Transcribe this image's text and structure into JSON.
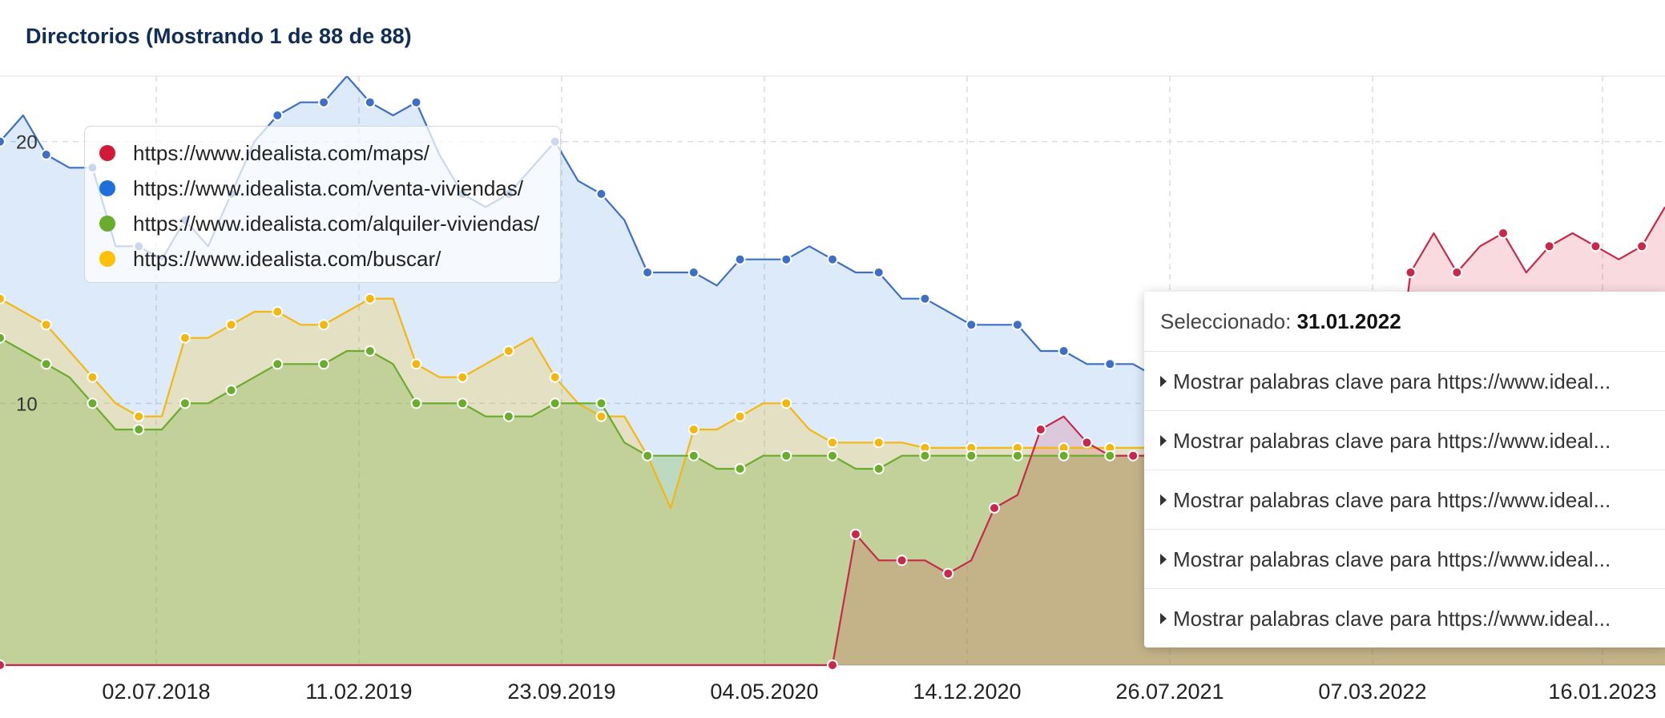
{
  "header": {
    "title": "Directorios (Mostrando 1 de 88 de 88)"
  },
  "legend": [
    {
      "label": "https://www.idealista.com/maps/",
      "color": "#d1193a"
    },
    {
      "label": "https://www.idealista.com/venta-viviendas/",
      "color": "#1e6fd9"
    },
    {
      "label": "https://www.idealista.com/alquiler-viviendas/",
      "color": "#6aac2c"
    },
    {
      "label": "https://www.idealista.com/buscar/",
      "color": "#ffc107"
    }
  ],
  "tooltip": {
    "selected_label": "Seleccionado:",
    "selected_date": "31.01.2022",
    "rows": [
      "Mostrar palabras clave para https://www.ideal...",
      "Mostrar palabras clave para https://www.ideal...",
      "Mostrar palabras clave para https://www.ideal...",
      "Mostrar palabras clave para https://www.ideal...",
      "Mostrar palabras clave para https://www.ideal..."
    ]
  },
  "chart_data": {
    "type": "area",
    "x_ticks": [
      "02.07.2018",
      "11.02.2019",
      "23.09.2019",
      "04.05.2020",
      "14.12.2020",
      "26.07.2021",
      "07.03.2022",
      "16.01.2023"
    ],
    "y_ticks": [
      10,
      20
    ],
    "ylim": [
      0,
      22.5
    ],
    "grid": true,
    "legend_position": "top-left",
    "series": [
      {
        "name": "https://www.idealista.com/maps/",
        "color": "#d1193a",
        "points": [
          [
            0,
            0
          ],
          [
            36,
            0
          ],
          [
            37,
            5
          ],
          [
            38,
            4
          ],
          [
            39,
            4
          ],
          [
            40,
            4
          ],
          [
            41,
            3.5
          ],
          [
            42,
            4
          ],
          [
            43,
            6
          ],
          [
            44,
            6.5
          ],
          [
            45,
            9
          ],
          [
            46,
            9.5
          ],
          [
            47,
            8.5
          ],
          [
            48,
            8
          ],
          [
            49,
            8
          ],
          [
            50,
            8
          ],
          [
            51,
            8
          ],
          [
            52,
            8.5
          ],
          [
            53,
            8.5
          ],
          [
            54,
            8
          ],
          [
            55,
            8.3
          ],
          [
            56,
            8.5
          ],
          [
            57,
            8.3
          ],
          [
            58,
            8
          ],
          [
            59,
            8
          ],
          [
            60,
            8
          ],
          [
            61,
            15
          ],
          [
            62,
            16.5
          ],
          [
            63,
            15
          ],
          [
            64,
            16
          ],
          [
            65,
            16.5
          ],
          [
            66,
            15
          ],
          [
            67,
            16
          ],
          [
            68,
            16.5
          ],
          [
            69,
            16
          ],
          [
            70,
            15.5
          ],
          [
            71,
            16
          ],
          [
            72,
            17.5
          ]
        ]
      },
      {
        "name": "https://www.idealista.com/venta-viviendas/",
        "color": "#1e6fd9",
        "points": [
          [
            0,
            20
          ],
          [
            1,
            21
          ],
          [
            2,
            19.5
          ],
          [
            3,
            19
          ],
          [
            4,
            19
          ],
          [
            5,
            16
          ],
          [
            6,
            16
          ],
          [
            7,
            15.5
          ],
          [
            8,
            17
          ],
          [
            9,
            16
          ],
          [
            10,
            18
          ],
          [
            11,
            20
          ],
          [
            12,
            21
          ],
          [
            13,
            21.5
          ],
          [
            14,
            21.5
          ],
          [
            15,
            22.5
          ],
          [
            16,
            21.5
          ],
          [
            17,
            21
          ],
          [
            18,
            21.5
          ],
          [
            19,
            19.5
          ],
          [
            20,
            18
          ],
          [
            21,
            17.5
          ],
          [
            22,
            18
          ],
          [
            23,
            19
          ],
          [
            24,
            20
          ],
          [
            25,
            18.5
          ],
          [
            26,
            18
          ],
          [
            27,
            17
          ],
          [
            28,
            15
          ],
          [
            29,
            15
          ],
          [
            30,
            15
          ],
          [
            31,
            14.5
          ],
          [
            32,
            15.5
          ],
          [
            33,
            15.5
          ],
          [
            34,
            15.5
          ],
          [
            35,
            16
          ],
          [
            36,
            15.5
          ],
          [
            37,
            15
          ],
          [
            38,
            15
          ],
          [
            39,
            14
          ],
          [
            40,
            14
          ],
          [
            41,
            13.5
          ],
          [
            42,
            13
          ],
          [
            43,
            13
          ],
          [
            44,
            13
          ],
          [
            45,
            12
          ],
          [
            46,
            12
          ],
          [
            47,
            11.5
          ],
          [
            48,
            11.5
          ],
          [
            49,
            11.5
          ],
          [
            50,
            11
          ],
          [
            51,
            11
          ],
          [
            52,
            10.5
          ],
          [
            53,
            10.5
          ],
          [
            54,
            10.5
          ],
          [
            55,
            10.3
          ],
          [
            56,
            10.5
          ],
          [
            57,
            10.8
          ],
          [
            58,
            11
          ],
          [
            59,
            11
          ],
          [
            60,
            11
          ],
          [
            61,
            11.2
          ],
          [
            62,
            11.3
          ],
          [
            63,
            11.3
          ],
          [
            64,
            11.3
          ],
          [
            65,
            11.3
          ],
          [
            66,
            11.3
          ],
          [
            67,
            11.3
          ],
          [
            68,
            11.3
          ],
          [
            69,
            11.3
          ],
          [
            70,
            11.3
          ],
          [
            71,
            11.3
          ],
          [
            72,
            11.3
          ]
        ]
      },
      {
        "name": "https://www.idealista.com/alquiler-viviendas/",
        "color": "#6aac2c",
        "points": [
          [
            0,
            12.5
          ],
          [
            1,
            12
          ],
          [
            2,
            11.5
          ],
          [
            3,
            11
          ],
          [
            4,
            10
          ],
          [
            5,
            9
          ],
          [
            6,
            9
          ],
          [
            7,
            9
          ],
          [
            8,
            10
          ],
          [
            9,
            10
          ],
          [
            10,
            10.5
          ],
          [
            11,
            11
          ],
          [
            12,
            11.5
          ],
          [
            13,
            11.5
          ],
          [
            14,
            11.5
          ],
          [
            15,
            12
          ],
          [
            16,
            12
          ],
          [
            17,
            11.5
          ],
          [
            18,
            10
          ],
          [
            19,
            10
          ],
          [
            20,
            10
          ],
          [
            21,
            9.5
          ],
          [
            22,
            9.5
          ],
          [
            23,
            9.5
          ],
          [
            24,
            10
          ],
          [
            25,
            10
          ],
          [
            26,
            10
          ],
          [
            27,
            8.5
          ],
          [
            28,
            8
          ],
          [
            29,
            8
          ],
          [
            30,
            8
          ],
          [
            31,
            7.5
          ],
          [
            32,
            7.5
          ],
          [
            33,
            8
          ],
          [
            34,
            8
          ],
          [
            35,
            8
          ],
          [
            36,
            8
          ],
          [
            37,
            7.5
          ],
          [
            38,
            7.5
          ],
          [
            39,
            8
          ],
          [
            40,
            8
          ],
          [
            41,
            8
          ],
          [
            42,
            8
          ],
          [
            43,
            8
          ],
          [
            44,
            8
          ],
          [
            45,
            8
          ],
          [
            46,
            8
          ],
          [
            47,
            8
          ],
          [
            48,
            8
          ],
          [
            49,
            8
          ],
          [
            50,
            8
          ],
          [
            51,
            8
          ],
          [
            52,
            8
          ],
          [
            53,
            8
          ],
          [
            54,
            8
          ],
          [
            55,
            8
          ],
          [
            56,
            8
          ],
          [
            57,
            8
          ],
          [
            58,
            8
          ],
          [
            59,
            8
          ],
          [
            60,
            8
          ],
          [
            61,
            8
          ],
          [
            62,
            8
          ],
          [
            63,
            8
          ],
          [
            64,
            8
          ],
          [
            65,
            8
          ],
          [
            66,
            8
          ],
          [
            67,
            8
          ],
          [
            68,
            8
          ],
          [
            69,
            8
          ],
          [
            70,
            8
          ],
          [
            71,
            8
          ],
          [
            72,
            8
          ]
        ]
      },
      {
        "name": "https://www.idealista.com/buscar/",
        "color": "#ffc107",
        "points": [
          [
            0,
            14
          ],
          [
            1,
            13.5
          ],
          [
            2,
            13
          ],
          [
            3,
            12
          ],
          [
            4,
            11
          ],
          [
            5,
            10
          ],
          [
            6,
            9.5
          ],
          [
            7,
            9.5
          ],
          [
            8,
            12.5
          ],
          [
            9,
            12.5
          ],
          [
            10,
            13
          ],
          [
            11,
            13.5
          ],
          [
            12,
            13.5
          ],
          [
            13,
            13
          ],
          [
            14,
            13
          ],
          [
            15,
            13.5
          ],
          [
            16,
            14
          ],
          [
            17,
            14
          ],
          [
            18,
            11.5
          ],
          [
            19,
            11
          ],
          [
            20,
            11
          ],
          [
            21,
            11.5
          ],
          [
            22,
            12
          ],
          [
            23,
            12.5
          ],
          [
            24,
            11
          ],
          [
            25,
            10
          ],
          [
            26,
            9.5
          ],
          [
            27,
            9.5
          ],
          [
            28,
            8
          ],
          [
            29,
            6
          ],
          [
            30,
            9
          ],
          [
            31,
            9
          ],
          [
            32,
            9.5
          ],
          [
            33,
            10
          ],
          [
            34,
            10
          ],
          [
            35,
            9
          ],
          [
            36,
            8.5
          ],
          [
            37,
            8.5
          ],
          [
            38,
            8.5
          ],
          [
            39,
            8.5
          ],
          [
            40,
            8.3
          ],
          [
            41,
            8.3
          ],
          [
            42,
            8.3
          ],
          [
            43,
            8.3
          ],
          [
            44,
            8.3
          ],
          [
            45,
            8.3
          ],
          [
            46,
            8.3
          ],
          [
            47,
            8.3
          ],
          [
            48,
            8.3
          ],
          [
            49,
            8.3
          ],
          [
            50,
            8.3
          ],
          [
            51,
            8.3
          ],
          [
            52,
            8.3
          ],
          [
            53,
            8.3
          ],
          [
            54,
            8.3
          ],
          [
            55,
            8.3
          ],
          [
            56,
            8.3
          ],
          [
            57,
            8.3
          ],
          [
            58,
            8.3
          ],
          [
            59,
            8.3
          ],
          [
            60,
            8.3
          ],
          [
            61,
            8.3
          ],
          [
            62,
            8.3
          ],
          [
            63,
            8.3
          ],
          [
            64,
            8.3
          ],
          [
            65,
            8.3
          ],
          [
            66,
            8.3
          ],
          [
            67,
            8.3
          ],
          [
            68,
            8.3
          ],
          [
            69,
            8.3
          ],
          [
            70,
            8.3
          ],
          [
            71,
            8.3
          ],
          [
            72,
            8.3
          ]
        ]
      }
    ]
  }
}
